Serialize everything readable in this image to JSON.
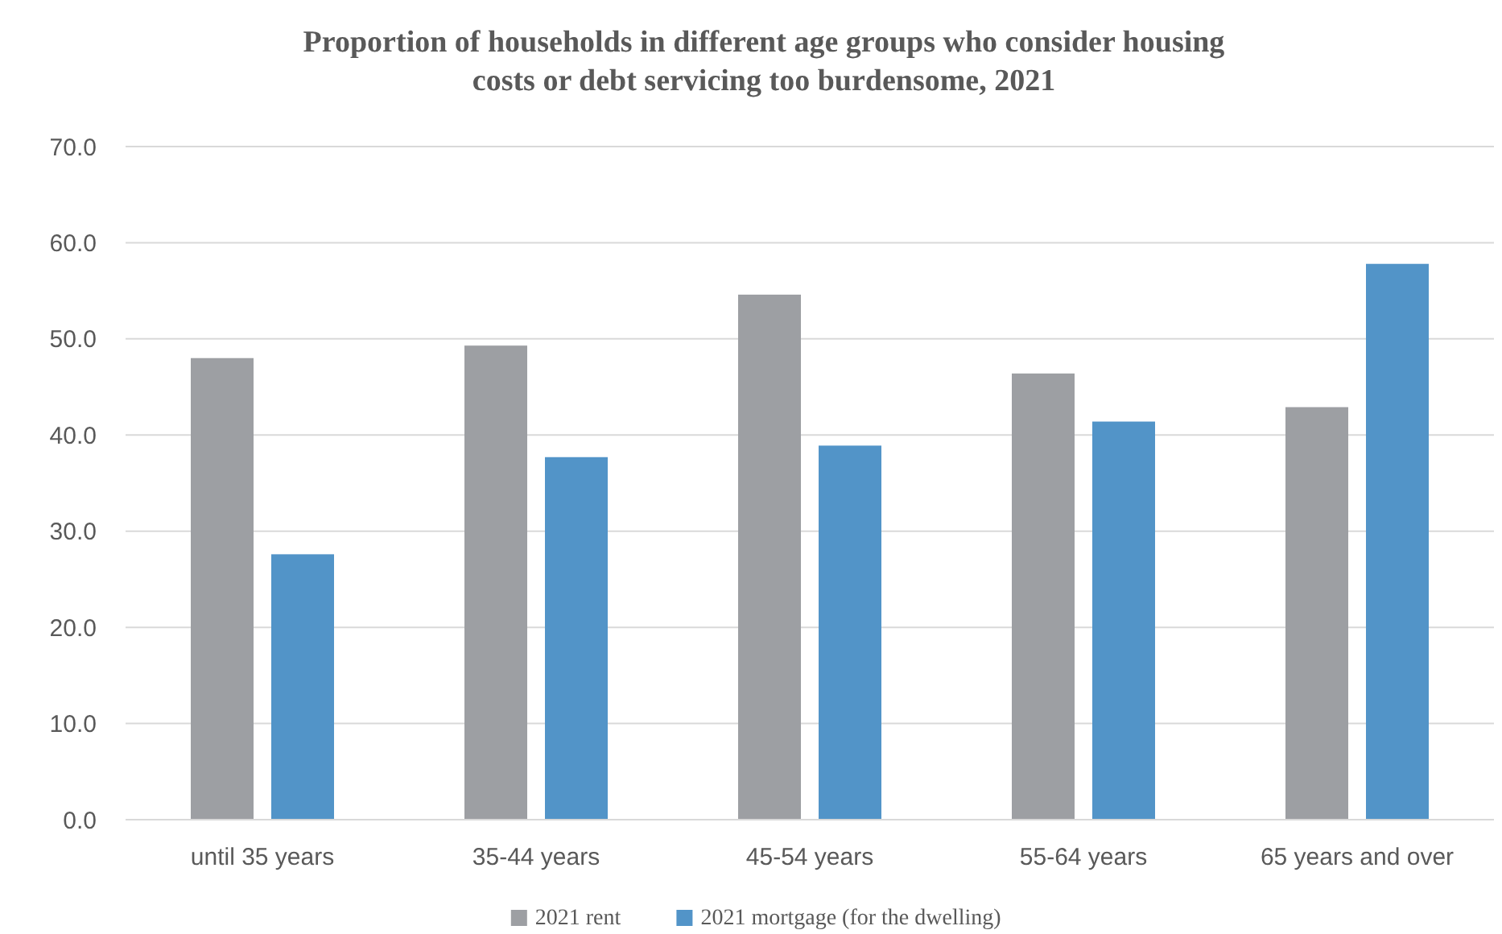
{
  "chart_data": {
    "type": "bar",
    "title": "Proportion of households in different age groups who consider housing costs or debt servicing too burdensome, 2021",
    "categories": [
      "until 35 years",
      "35-44 years",
      "45-54 years",
      "55-64 years",
      "65 years and over"
    ],
    "series": [
      {
        "name": "2021 rent",
        "color": "#9d9fa3",
        "values": [
          48.0,
          49.3,
          54.6,
          46.4,
          42.9
        ]
      },
      {
        "name": "2021 mortgage (for the dwelling)",
        "color": "#5294c8",
        "values": [
          27.6,
          37.7,
          38.9,
          41.4,
          57.8
        ]
      }
    ],
    "ylim": [
      0,
      70
    ],
    "yticks": [
      {
        "value": 0,
        "label": "0.0"
      },
      {
        "value": 10,
        "label": "10.0"
      },
      {
        "value": 20,
        "label": "20.0"
      },
      {
        "value": 30,
        "label": "30.0"
      },
      {
        "value": 40,
        "label": "40.0"
      },
      {
        "value": 50,
        "label": "50.0"
      },
      {
        "value": 60,
        "label": "60.0"
      },
      {
        "value": 70,
        "label": "70.0"
      }
    ],
    "grid": "y",
    "legend": "bottom"
  }
}
